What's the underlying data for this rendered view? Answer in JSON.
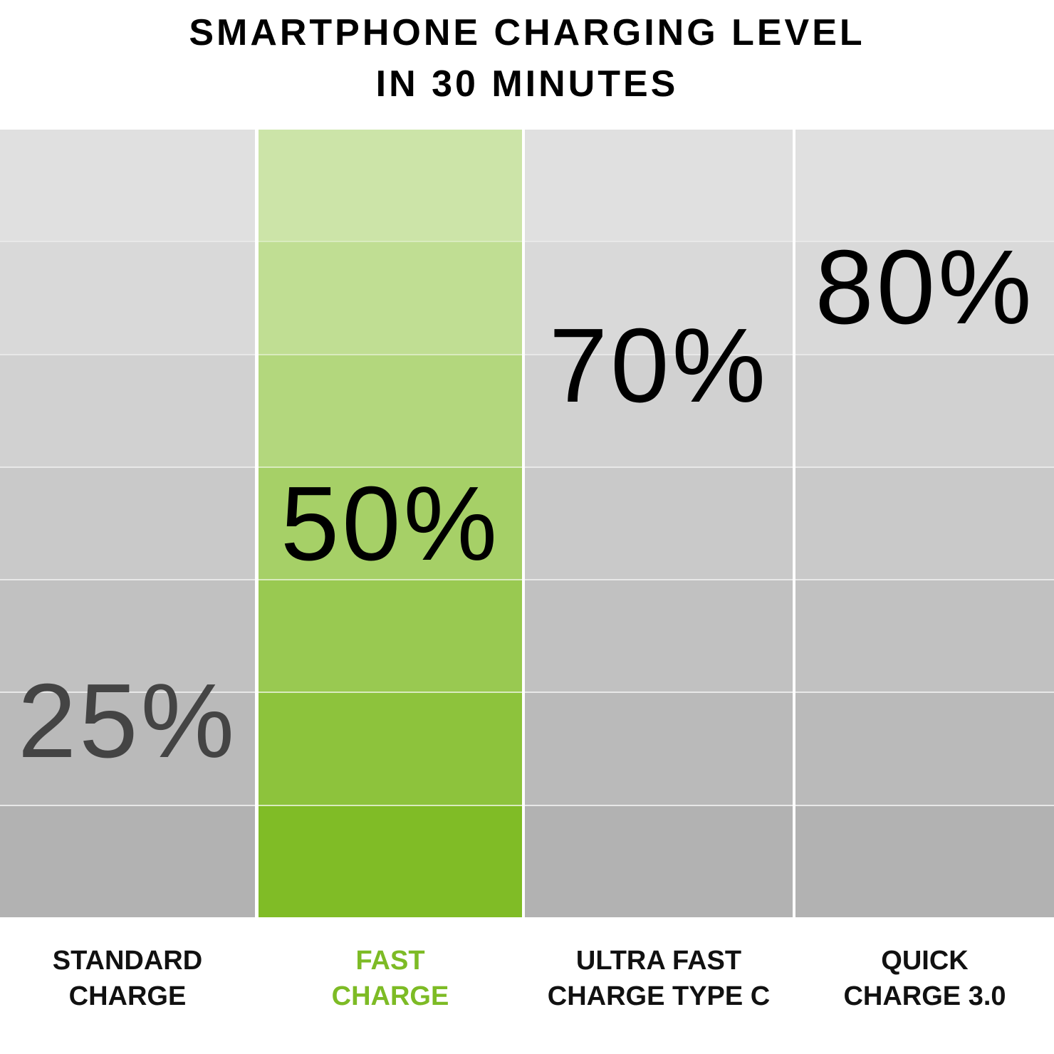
{
  "chart_data": {
    "type": "column-level",
    "title": "SMARTPHONE CHARGING LEVEL\nIN 30 MINUTES",
    "categories": [
      "STANDARD\nCHARGE",
      "FAST\nCHARGE",
      "ULTRA FAST\nCHARGE TYPE C",
      "QUICK\nCHARGE 3.0"
    ],
    "values": [
      25,
      50,
      70,
      80
    ],
    "value_labels": [
      "25%",
      "50%",
      "70%",
      "80%"
    ],
    "colors": [
      "#b2b2b2",
      "#80bc26",
      "#b2b2b2",
      "#b2b2b2"
    ],
    "label_colors": [
      "#111111",
      "#7dbb25",
      "#111111",
      "#111111"
    ],
    "value_label_colors": [
      "#444444",
      "#000000",
      "#000000",
      "#000000"
    ],
    "ylim": [
      0,
      100
    ]
  }
}
